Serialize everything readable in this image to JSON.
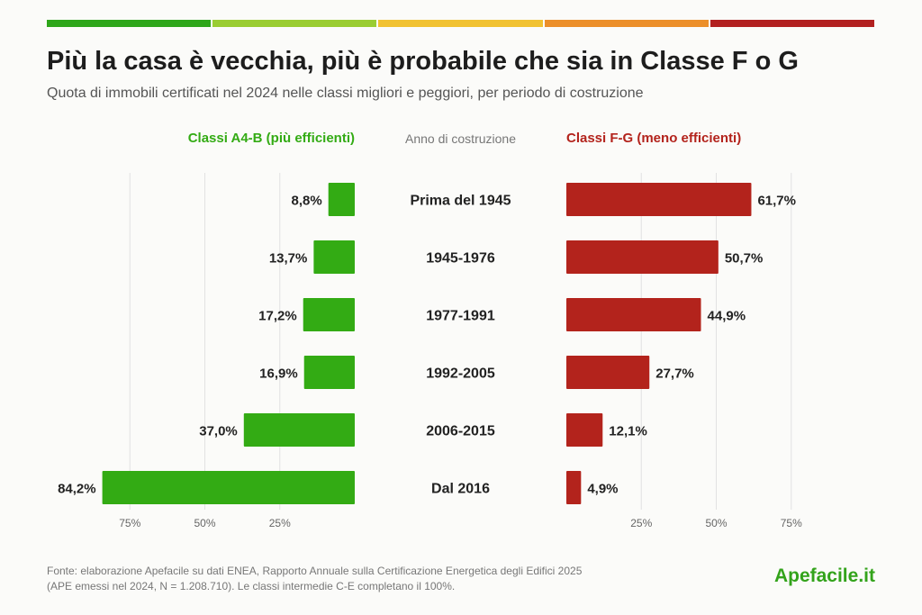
{
  "colors": {
    "top_bar": [
      "#2ea61a",
      "#9acd32",
      "#f1c232",
      "#ec8f2a",
      "#b22020"
    ],
    "good": "#33ab14",
    "bad": "#b3231c",
    "grid": "#e2e2e2"
  },
  "header": {
    "title": "Più la casa è vecchia, più è probabile che sia in Classe F o G",
    "subtitle": "Quota di immobili certificati nel 2024 nelle classi migliori e peggiori, per periodo di costruzione"
  },
  "columns": {
    "left": "Classi A4-B  (più efficienti)",
    "middle": "Anno di costruzione",
    "right": "Classi F-G  (meno efficienti)"
  },
  "chart_data": {
    "type": "bar",
    "orientation": "horizontal-diverging",
    "categories": [
      "Prima del 1945",
      "1945-1976",
      "1977-1991",
      "1992-2005",
      "2006-2015",
      "Dal 2016"
    ],
    "series": [
      {
        "name": "Classi A4-B  (più efficienti)",
        "values": [
          8.8,
          13.7,
          17.2,
          16.9,
          37.0,
          84.2
        ],
        "labels": [
          "8,8%",
          "13,7%",
          "17,2%",
          "16,9%",
          "37,0%",
          "84,2%"
        ]
      },
      {
        "name": "Classi F-G  (meno efficienti)",
        "values": [
          61.7,
          50.7,
          44.9,
          27.7,
          12.1,
          4.9
        ],
        "labels": [
          "61,7%",
          "50,7%",
          "44,9%",
          "27,7%",
          "12,1%",
          "4,9%"
        ]
      }
    ],
    "ticks": [
      25,
      50,
      75
    ],
    "tick_labels": [
      "25%",
      "50%",
      "75%"
    ],
    "xlim": [
      0,
      100
    ],
    "grid": true
  },
  "footer": {
    "line1": "Fonte: elaborazione Apefacile su dati ENEA, Rapporto Annuale sulla Certificazione Energetica degli Edifici 2025",
    "line2": "(APE emessi nel 2024, N = 1.208.710). Le classi intermedie C-E completano il 100%.",
    "brand": "Apefacile.it"
  }
}
